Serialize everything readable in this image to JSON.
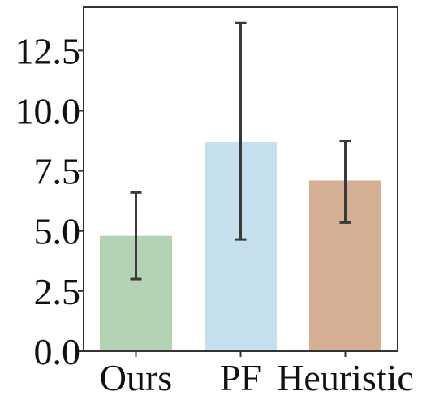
{
  "chart_data": {
    "type": "bar",
    "title": "",
    "xlabel": "",
    "ylabel": "",
    "categories": [
      "Ours",
      "PF",
      "Heuristic"
    ],
    "values": [
      4.8,
      8.7,
      7.1
    ],
    "error_low": [
      3.0,
      4.65,
      5.35
    ],
    "error_high": [
      6.6,
      13.65,
      8.75
    ],
    "ylim": [
      0,
      14.3
    ],
    "yticks": [
      0.0,
      2.5,
      5.0,
      7.5,
      10.0,
      12.5
    ],
    "ytick_labels": [
      "0.0",
      "2.5",
      "5.0",
      "7.5",
      "10.0",
      "12.5"
    ],
    "colors": [
      "#b3d3b4",
      "#c6dfec",
      "#d6af95"
    ],
    "error_color": "#3a3a3a",
    "grid": false,
    "legend": "none"
  }
}
